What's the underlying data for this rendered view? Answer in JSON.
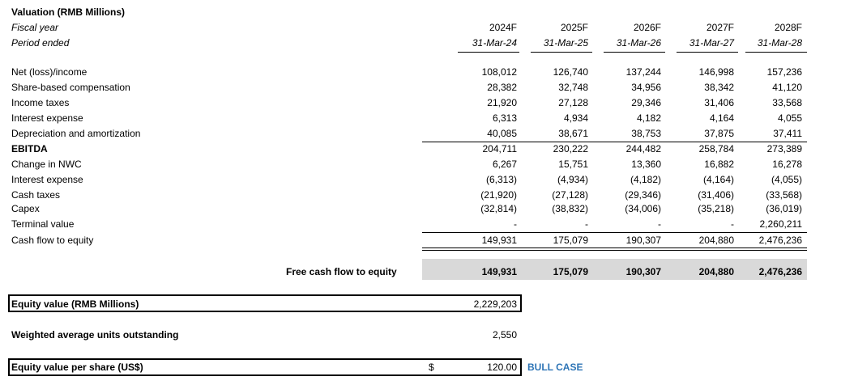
{
  "title": "Valuation (RMB Millions)",
  "header": {
    "fiscal_year_label": "Fiscal year",
    "period_ended_label": "Period ended",
    "years": [
      "2024F",
      "2025F",
      "2026F",
      "2027F",
      "2028F"
    ],
    "period_ends": [
      "31-Mar-24",
      "31-Mar-25",
      "31-Mar-26",
      "31-Mar-27",
      "31-Mar-28"
    ]
  },
  "rows": [
    {
      "label": "Net (loss)/income",
      "values": [
        "108,012",
        "126,740",
        "137,244",
        "146,998",
        "157,236"
      ]
    },
    {
      "label": "Share-based compensation",
      "values": [
        "28,382",
        "32,748",
        "34,956",
        "38,342",
        "41,120"
      ]
    },
    {
      "label": "Income taxes",
      "values": [
        "21,920",
        "27,128",
        "29,346",
        "31,406",
        "33,568"
      ]
    },
    {
      "label": "Interest expense",
      "values": [
        "6,313",
        "4,934",
        "4,182",
        "4,164",
        "4,055"
      ]
    },
    {
      "label": "Depreciation and amortization",
      "values": [
        "40,085",
        "38,671",
        "38,753",
        "37,875",
        "37,411"
      ]
    },
    {
      "label": "EBITDA",
      "values": [
        "204,711",
        "230,222",
        "244,482",
        "258,784",
        "273,389"
      ]
    },
    {
      "label": "Change in NWC",
      "values": [
        "6,267",
        "15,751",
        "13,360",
        "16,882",
        "16,278"
      ]
    },
    {
      "label": "Interest expense",
      "values": [
        "(6,313)",
        "(4,934)",
        "(4,182)",
        "(4,164)",
        "(4,055)"
      ]
    },
    {
      "label": "Cash taxes",
      "values": [
        "(21,920)",
        "(27,128)",
        "(29,346)",
        "(31,406)",
        "(33,568)"
      ]
    },
    {
      "label": "Capex",
      "values": [
        "(32,814)",
        "(38,832)",
        "(34,006)",
        "(35,218)",
        "(36,019)"
      ]
    },
    {
      "label": "Terminal value",
      "values": [
        "-",
        "-",
        "-",
        "-",
        "2,260,211"
      ]
    },
    {
      "label": "Cash flow to equity",
      "values": [
        "149,931",
        "175,079",
        "190,307",
        "204,880",
        "2,476,236"
      ]
    }
  ],
  "fcfe": {
    "label": "Free cash flow to equity",
    "values": [
      "149,931",
      "175,079",
      "190,307",
      "204,880",
      "2,476,236"
    ]
  },
  "equity_value": {
    "label": "Equity value (RMB Millions)",
    "value": "2,229,203"
  },
  "units": {
    "label": "Weighted average units outstanding",
    "value": "2,550"
  },
  "per_share": {
    "label": "Equity value per share (US$)",
    "currency": "$",
    "value": "120.00",
    "scenario": "BULL CASE"
  }
}
